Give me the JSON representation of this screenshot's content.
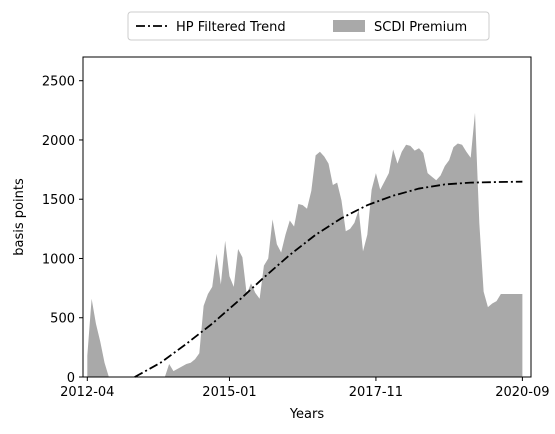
{
  "chart_data": {
    "type": "area",
    "title": "",
    "xlabel": "Years",
    "ylabel": "basis points",
    "xlim": [
      "2012-03",
      "2020-11"
    ],
    "ylim": [
      0,
      2700
    ],
    "x_tick_labels": [
      "2012-04",
      "2015-01",
      "2017-11",
      "2020-09"
    ],
    "y_tick_labels": [
      "0",
      "500",
      "1000",
      "1500",
      "2000",
      "2500"
    ],
    "y_ticks": [
      0,
      500,
      1000,
      1500,
      2000,
      2500
    ],
    "grid": false,
    "legend": {
      "position": "top-center",
      "entries": [
        "HP Filtered Trend",
        "SCDI Premium"
      ]
    },
    "colors": {
      "area": "#a9a9a9",
      "trend": "#000000"
    },
    "series": [
      {
        "name": "SCDI Premium",
        "kind": "area",
        "points": [
          [
            "2012-04",
            180
          ],
          [
            "2012-05",
            660
          ],
          [
            "2012-06",
            450
          ],
          [
            "2012-07",
            300
          ],
          [
            "2012-08",
            120
          ],
          [
            "2012-09",
            0
          ],
          [
            "2013-10",
            0
          ],
          [
            "2013-11",
            110
          ],
          [
            "2013-12",
            50
          ],
          [
            "2014-01",
            70
          ],
          [
            "2014-02",
            90
          ],
          [
            "2014-03",
            110
          ],
          [
            "2014-04",
            120
          ],
          [
            "2014-05",
            150
          ],
          [
            "2014-06",
            200
          ],
          [
            "2014-07",
            600
          ],
          [
            "2014-08",
            700
          ],
          [
            "2014-09",
            760
          ],
          [
            "2014-10",
            1040
          ],
          [
            "2014-11",
            780
          ],
          [
            "2014-12",
            1150
          ],
          [
            "2015-01",
            850
          ],
          [
            "2015-02",
            760
          ],
          [
            "2015-03",
            1080
          ],
          [
            "2015-04",
            1010
          ],
          [
            "2015-05",
            700
          ],
          [
            "2015-06",
            790
          ],
          [
            "2015-07",
            710
          ],
          [
            "2015-08",
            660
          ],
          [
            "2015-09",
            940
          ],
          [
            "2015-10",
            1000
          ],
          [
            "2015-11",
            1330
          ],
          [
            "2015-12",
            1120
          ],
          [
            "2016-01",
            1050
          ],
          [
            "2016-02",
            1200
          ],
          [
            "2016-03",
            1320
          ],
          [
            "2016-04",
            1270
          ],
          [
            "2016-05",
            1460
          ],
          [
            "2016-06",
            1450
          ],
          [
            "2016-07",
            1420
          ],
          [
            "2016-08",
            1570
          ],
          [
            "2016-09",
            1870
          ],
          [
            "2016-10",
            1900
          ],
          [
            "2016-11",
            1860
          ],
          [
            "2016-12",
            1800
          ],
          [
            "2017-01",
            1620
          ],
          [
            "2017-02",
            1640
          ],
          [
            "2017-03",
            1490
          ],
          [
            "2017-04",
            1230
          ],
          [
            "2017-05",
            1250
          ],
          [
            "2017-06",
            1300
          ],
          [
            "2017-07",
            1410
          ],
          [
            "2017-08",
            1060
          ],
          [
            "2017-09",
            1200
          ],
          [
            "2017-10",
            1580
          ],
          [
            "2017-11",
            1720
          ],
          [
            "2017-12",
            1580
          ],
          [
            "2018-01",
            1650
          ],
          [
            "2018-02",
            1720
          ],
          [
            "2018-03",
            1920
          ],
          [
            "2018-04",
            1800
          ],
          [
            "2018-05",
            1900
          ],
          [
            "2018-06",
            1960
          ],
          [
            "2018-07",
            1950
          ],
          [
            "2018-08",
            1910
          ],
          [
            "2018-09",
            1930
          ],
          [
            "2018-10",
            1890
          ],
          [
            "2018-11",
            1720
          ],
          [
            "2018-12",
            1690
          ],
          [
            "2019-01",
            1660
          ],
          [
            "2019-02",
            1700
          ],
          [
            "2019-03",
            1780
          ],
          [
            "2019-04",
            1830
          ],
          [
            "2019-05",
            1940
          ],
          [
            "2019-06",
            1970
          ],
          [
            "2019-07",
            1960
          ],
          [
            "2019-08",
            1900
          ],
          [
            "2019-09",
            1850
          ],
          [
            "2019-10",
            2230
          ],
          [
            "2019-11",
            1300
          ],
          [
            "2019-12",
            720
          ],
          [
            "2020-01",
            590
          ],
          [
            "2020-02",
            620
          ],
          [
            "2020-03",
            640
          ],
          [
            "2020-04",
            700
          ],
          [
            "2020-09",
            700
          ]
        ]
      },
      {
        "name": "HP Filtered Trend",
        "kind": "line",
        "style": "dash-dot",
        "points": [
          [
            "2013-03",
            0
          ],
          [
            "2013-09",
            120
          ],
          [
            "2014-03",
            280
          ],
          [
            "2014-09",
            450
          ],
          [
            "2015-03",
            640
          ],
          [
            "2015-09",
            840
          ],
          [
            "2016-03",
            1030
          ],
          [
            "2016-09",
            1200
          ],
          [
            "2017-03",
            1340
          ],
          [
            "2017-09",
            1450
          ],
          [
            "2018-03",
            1530
          ],
          [
            "2018-09",
            1590
          ],
          [
            "2019-03",
            1625
          ],
          [
            "2019-09",
            1640
          ],
          [
            "2020-03",
            1645
          ],
          [
            "2020-09",
            1648
          ]
        ]
      }
    ]
  }
}
